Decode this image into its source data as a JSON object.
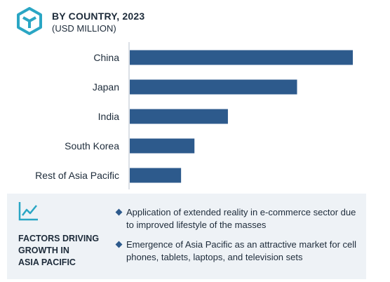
{
  "header": {
    "title": "BY COUNTRY, 2023",
    "subtitle": "(USD MILLION)",
    "logo_icon": "cube-logo-icon"
  },
  "colors": {
    "bar": "#2d5a8c",
    "accent": "#2aa6c4",
    "panel_bg": "#eef2f6",
    "text": "#1d2b3a"
  },
  "chart_data": {
    "type": "bar",
    "orientation": "horizontal",
    "title": "BY COUNTRY, 2023",
    "subtitle": "(USD MILLION)",
    "categories": [
      "China",
      "Japan",
      "India",
      "South Korea",
      "Rest of Asia Pacific"
    ],
    "values": [
      100,
      75,
      44,
      29,
      23
    ],
    "xlim": [
      0,
      100
    ],
    "grid": false,
    "value_axis_labels": false
  },
  "factors": {
    "icon": "trend-chart-icon",
    "title": "FACTORS DRIVING\nGROWTH IN\nASIA PACIFIC",
    "items": [
      "Application of extended reality in e-commerce sector due to improved lifestyle of the masses",
      "Emergence of Asia Pacific as an attractive market for cell phones, tablets, laptops, and television sets"
    ]
  }
}
